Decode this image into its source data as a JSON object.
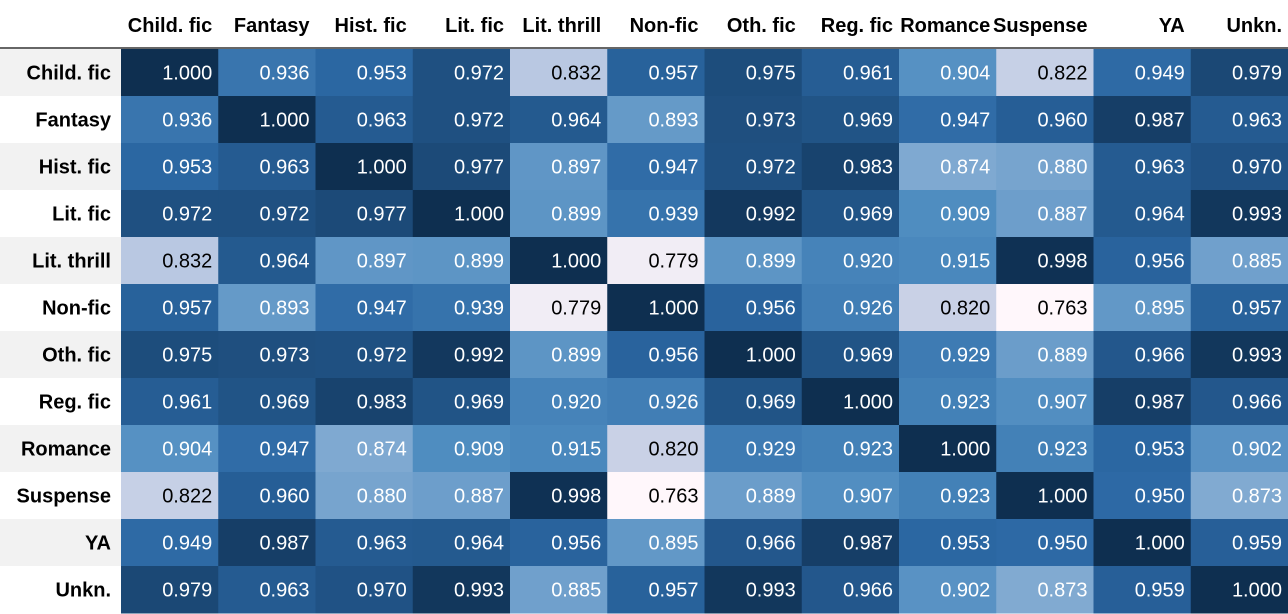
{
  "chart_data": {
    "type": "heatmap",
    "row_labels": [
      "Child. fic",
      "Fantasy",
      "Hist. fic",
      "Lit. fic",
      "Lit. thrill",
      "Non-fic",
      "Oth. fic",
      "Reg. fic",
      "Romance",
      "Suspense",
      "YA",
      "Unkn."
    ],
    "col_labels": [
      "Child. fic",
      "Fantasy",
      "Hist. fic",
      "Lit. fic",
      "Lit. thrill",
      "Non-fic",
      "Oth. fic",
      "Reg. fic",
      "Romance",
      "Suspense",
      "YA",
      "Unkn."
    ],
    "values": [
      [
        1.0,
        0.936,
        0.953,
        0.972,
        0.832,
        0.957,
        0.975,
        0.961,
        0.904,
        0.822,
        0.949,
        0.979
      ],
      [
        0.936,
        1.0,
        0.963,
        0.972,
        0.964,
        0.893,
        0.973,
        0.969,
        0.947,
        0.96,
        0.987,
        0.963
      ],
      [
        0.953,
        0.963,
        1.0,
        0.977,
        0.897,
        0.947,
        0.972,
        0.983,
        0.874,
        0.88,
        0.963,
        0.97
      ],
      [
        0.972,
        0.972,
        0.977,
        1.0,
        0.899,
        0.939,
        0.992,
        0.969,
        0.909,
        0.887,
        0.964,
        0.993
      ],
      [
        0.832,
        0.964,
        0.897,
        0.899,
        1.0,
        0.779,
        0.899,
        0.92,
        0.915,
        0.998,
        0.956,
        0.885
      ],
      [
        0.957,
        0.893,
        0.947,
        0.939,
        0.779,
        1.0,
        0.956,
        0.926,
        0.82,
        0.763,
        0.895,
        0.957
      ],
      [
        0.975,
        0.973,
        0.972,
        0.992,
        0.899,
        0.956,
        1.0,
        0.969,
        0.929,
        0.889,
        0.966,
        0.993
      ],
      [
        0.961,
        0.969,
        0.983,
        0.969,
        0.92,
        0.926,
        0.969,
        1.0,
        0.923,
        0.907,
        0.987,
        0.966
      ],
      [
        0.904,
        0.947,
        0.874,
        0.909,
        0.915,
        0.82,
        0.929,
        0.923,
        1.0,
        0.923,
        0.953,
        0.902
      ],
      [
        0.822,
        0.96,
        0.88,
        0.887,
        0.998,
        0.763,
        0.889,
        0.907,
        0.923,
        1.0,
        0.95,
        0.873
      ],
      [
        0.949,
        0.987,
        0.963,
        0.964,
        0.956,
        0.895,
        0.966,
        0.987,
        0.953,
        0.95,
        1.0,
        0.959
      ],
      [
        0.979,
        0.963,
        0.97,
        0.993,
        0.885,
        0.957,
        0.993,
        0.966,
        0.902,
        0.873,
        0.959,
        1.0
      ]
    ],
    "value_format": "0.000",
    "colormap": "Blues",
    "colors": {
      "low": "#fff7fb",
      "high": "#0e2f50",
      "row_header_bg": "#f2f2f2",
      "text_dark": "#000000",
      "text_light": "#ffffff"
    }
  }
}
